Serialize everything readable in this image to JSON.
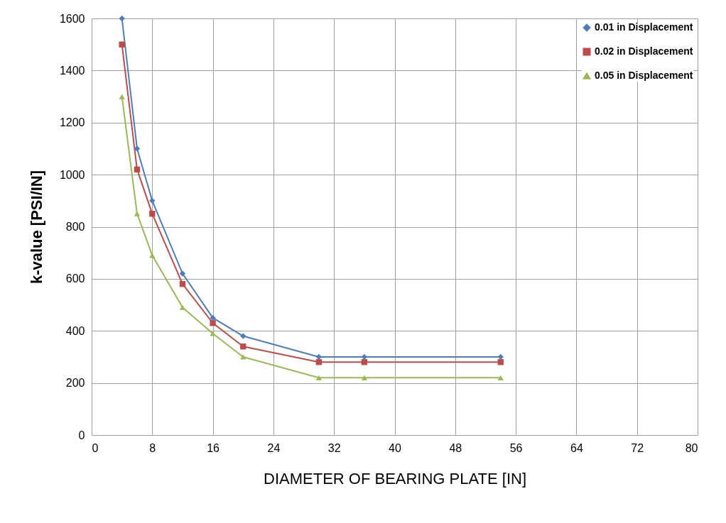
{
  "chart_data": {
    "type": "line",
    "xlabel": "DIAMETER OF BEARING PLATE [IN]",
    "ylabel": "k-value [PSI/IN]",
    "x": [
      4,
      6,
      8,
      12,
      16,
      20,
      30,
      36,
      54
    ],
    "series": [
      {
        "name": "0.01 in Displacement",
        "color": "#4a7ebb",
        "marker": "diamond",
        "values": [
          1600,
          1100,
          900,
          620,
          450,
          380,
          300,
          300,
          300
        ]
      },
      {
        "name": "0.02 in Displacement",
        "color": "#be4b48",
        "marker": "square",
        "values": [
          1500,
          1020,
          850,
          580,
          430,
          340,
          280,
          280,
          280
        ]
      },
      {
        "name": "0.05 in Displacement",
        "color": "#98b954",
        "marker": "triangle",
        "values": [
          1300,
          850,
          690,
          490,
          390,
          300,
          220,
          220,
          220
        ]
      }
    ],
    "xlim": [
      0,
      80
    ],
    "xticks": [
      0,
      8,
      16,
      24,
      32,
      40,
      48,
      56,
      64,
      72,
      80
    ],
    "ylim": [
      0,
      1600
    ],
    "yticks": [
      0,
      200,
      400,
      600,
      800,
      1000,
      1200,
      1400,
      1600
    ],
    "grid": true,
    "legend": "top right",
    "line_style": "solid"
  }
}
